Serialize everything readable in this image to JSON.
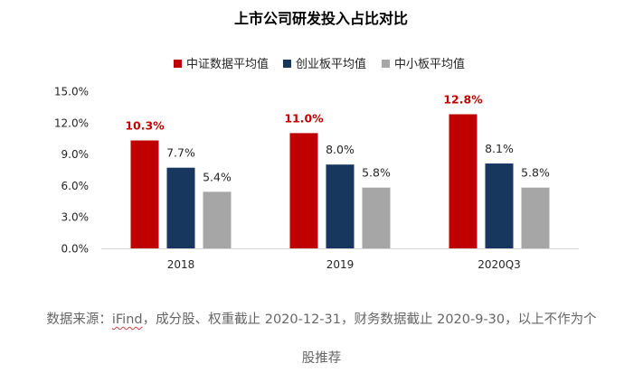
{
  "chart_data": {
    "type": "bar",
    "title": "上市公司研发投入占比对比",
    "categories": [
      "2018",
      "2019",
      "2020Q3"
    ],
    "series": [
      {
        "name": "中证数据平均值",
        "values": [
          10.3,
          11.0,
          12.8
        ],
        "labels": [
          "10.3%",
          "11.0%",
          "12.8%"
        ],
        "color": "#c00000",
        "label_color": "#c00000",
        "label_bold": true
      },
      {
        "name": "创业板平均值",
        "values": [
          7.7,
          8.0,
          8.1
        ],
        "labels": [
          "7.7%",
          "8.0%",
          "8.1%"
        ],
        "color": "#17375e",
        "label_color": "#262626",
        "label_bold": false
      },
      {
        "name": "中小板平均值",
        "values": [
          5.4,
          5.8,
          5.8
        ],
        "labels": [
          "5.4%",
          "5.8%",
          "5.8%"
        ],
        "color": "#a6a6a6",
        "label_color": "#262626",
        "label_bold": false
      }
    ],
    "ylim": [
      0,
      15
    ],
    "yticks": [
      0,
      3,
      6,
      9,
      12,
      15
    ],
    "ytick_labels": [
      "0.0%",
      "3.0%",
      "6.0%",
      "9.0%",
      "12.0%",
      "15.0%"
    ],
    "xlabel": "",
    "ylabel": "",
    "legend_position": "top-center",
    "grid": false
  },
  "caption": {
    "part1": "数据来源：",
    "source": "iFind",
    "part2": "，成分股、权重截止 2020-12-31，财务数据截止 2020-9-30，以上不作为个",
    "line2": "股推荐"
  }
}
